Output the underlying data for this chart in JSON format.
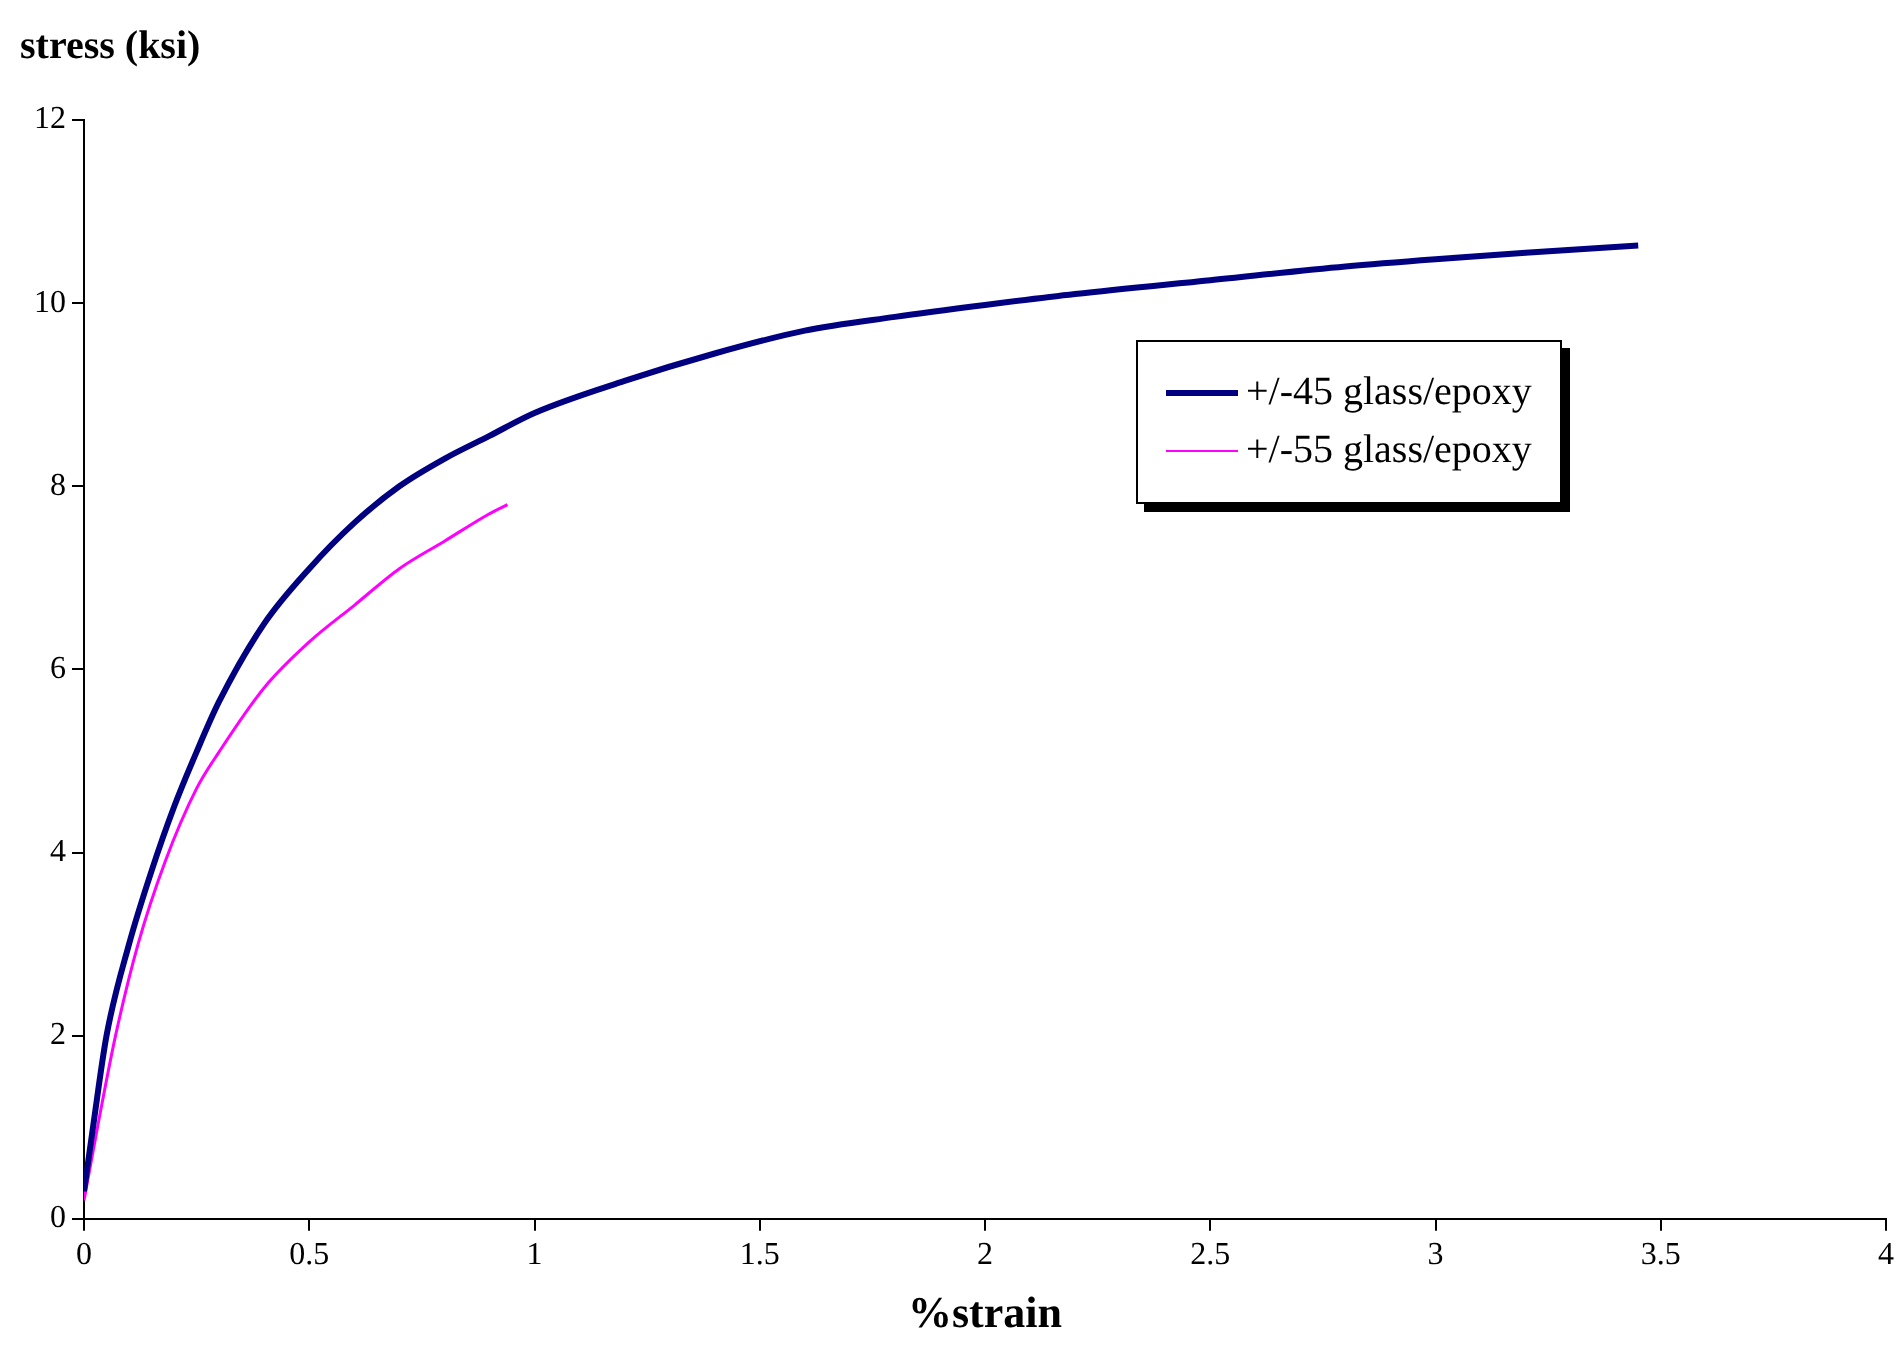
{
  "chart_data": {
    "type": "line",
    "xlabel": "%strain",
    "ylabel": "stress (ksi)",
    "xlim": [
      0,
      4
    ],
    "xticks": [
      0,
      0.5,
      1,
      1.5,
      2,
      2.5,
      3,
      3.5,
      4
    ],
    "ylim": [
      0,
      12
    ],
    "yticks": [
      0,
      2,
      4,
      6,
      8,
      10,
      12
    ],
    "grid": false,
    "legend": "right",
    "marker": "none",
    "line_style": "solid",
    "series": [
      {
        "name": "+/-45 glass/epoxy",
        "color": "#000080",
        "x": [
          0,
          0.02,
          0.05,
          0.1,
          0.15,
          0.2,
          0.25,
          0.3,
          0.4,
          0.5,
          0.6,
          0.7,
          0.8,
          0.9,
          1.0,
          1.2,
          1.4,
          1.6,
          1.8,
          2.0,
          2.2,
          2.5,
          2.8,
          3.0,
          3.2,
          3.45
        ],
        "values": [
          0.3,
          1,
          2,
          3,
          3.8,
          4.5,
          5.1,
          5.65,
          6.5,
          7.1,
          7.6,
          8.0,
          8.3,
          8.55,
          8.8,
          9.15,
          9.45,
          9.7,
          9.85,
          9.98,
          10.1,
          10.25,
          10.4,
          10.48,
          10.55,
          10.63
        ]
      },
      {
        "name": "+/-55 glass/epoxy",
        "color": "#ff00ff",
        "x": [
          0,
          0.03,
          0.07,
          0.12,
          0.18,
          0.25,
          0.3,
          0.4,
          0.5,
          0.6,
          0.7,
          0.8,
          0.9,
          0.94
        ],
        "values": [
          0.2,
          1,
          2,
          3,
          3.9,
          4.7,
          5.1,
          5.8,
          6.3,
          6.7,
          7.1,
          7.4,
          7.7,
          7.8
        ]
      }
    ]
  }
}
